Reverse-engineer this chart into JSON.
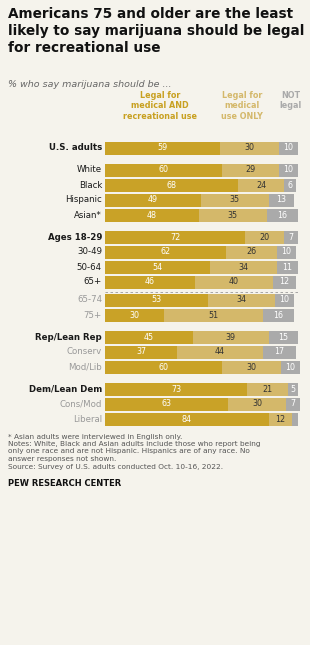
{
  "title": "Americans 75 and older are the least\nlikely to say marijuana should be legal\nfor recreational use",
  "subtitle": "% who say marijuana should be ...",
  "col_labels": [
    "Legal for\nmedical AND\nrecreational use",
    "Legal for\nmedical\nuse ONLY",
    "NOT\nlegal"
  ],
  "col_colors": [
    "#C8A020",
    "#D4B86A",
    "#AAAAAA"
  ],
  "categories": [
    "U.S. adults",
    "White",
    "Black",
    "Hispanic",
    "Asian*",
    "Ages 18-29",
    "30-49",
    "50-64",
    "65+",
    "65-74",
    "75+",
    "Rep/Lean Rep",
    "Conserv",
    "Mod/Lib",
    "Dem/Lean Dem",
    "Cons/Mod",
    "Liberal"
  ],
  "bold_rows": [
    0,
    5,
    11,
    14
  ],
  "gray_rows": [
    9,
    10,
    12,
    13,
    15,
    16
  ],
  "dotted_after": [
    8
  ],
  "spacer_after": [
    0,
    4,
    10,
    13
  ],
  "values": [
    [
      59,
      30,
      10
    ],
    [
      60,
      29,
      10
    ],
    [
      68,
      24,
      6
    ],
    [
      49,
      35,
      13
    ],
    [
      48,
      35,
      16
    ],
    [
      72,
      20,
      7
    ],
    [
      62,
      26,
      10
    ],
    [
      54,
      34,
      11
    ],
    [
      46,
      40,
      12
    ],
    [
      53,
      34,
      10
    ],
    [
      30,
      51,
      16
    ],
    [
      45,
      39,
      15
    ],
    [
      37,
      44,
      17
    ],
    [
      60,
      30,
      10
    ],
    [
      73,
      21,
      5
    ],
    [
      63,
      30,
      7
    ],
    [
      84,
      12,
      3
    ]
  ],
  "bar_colors": [
    "#C9A227",
    "#D4B86A",
    "#AAAAAA"
  ],
  "background_color": "#F5F3EC",
  "text_color": "#222222",
  "footnote": "* Asian adults were interviewed in English only.\nNotes: White, Black and Asian adults include those who report being\nonly one race and are not Hispanic. Hispanics are of any race. No\nanswer responses not shown.\nSource: Survey of U.S. adults conducted Oct. 10-16, 2022.",
  "footer_bold": "PEW RESEARCH CENTER"
}
